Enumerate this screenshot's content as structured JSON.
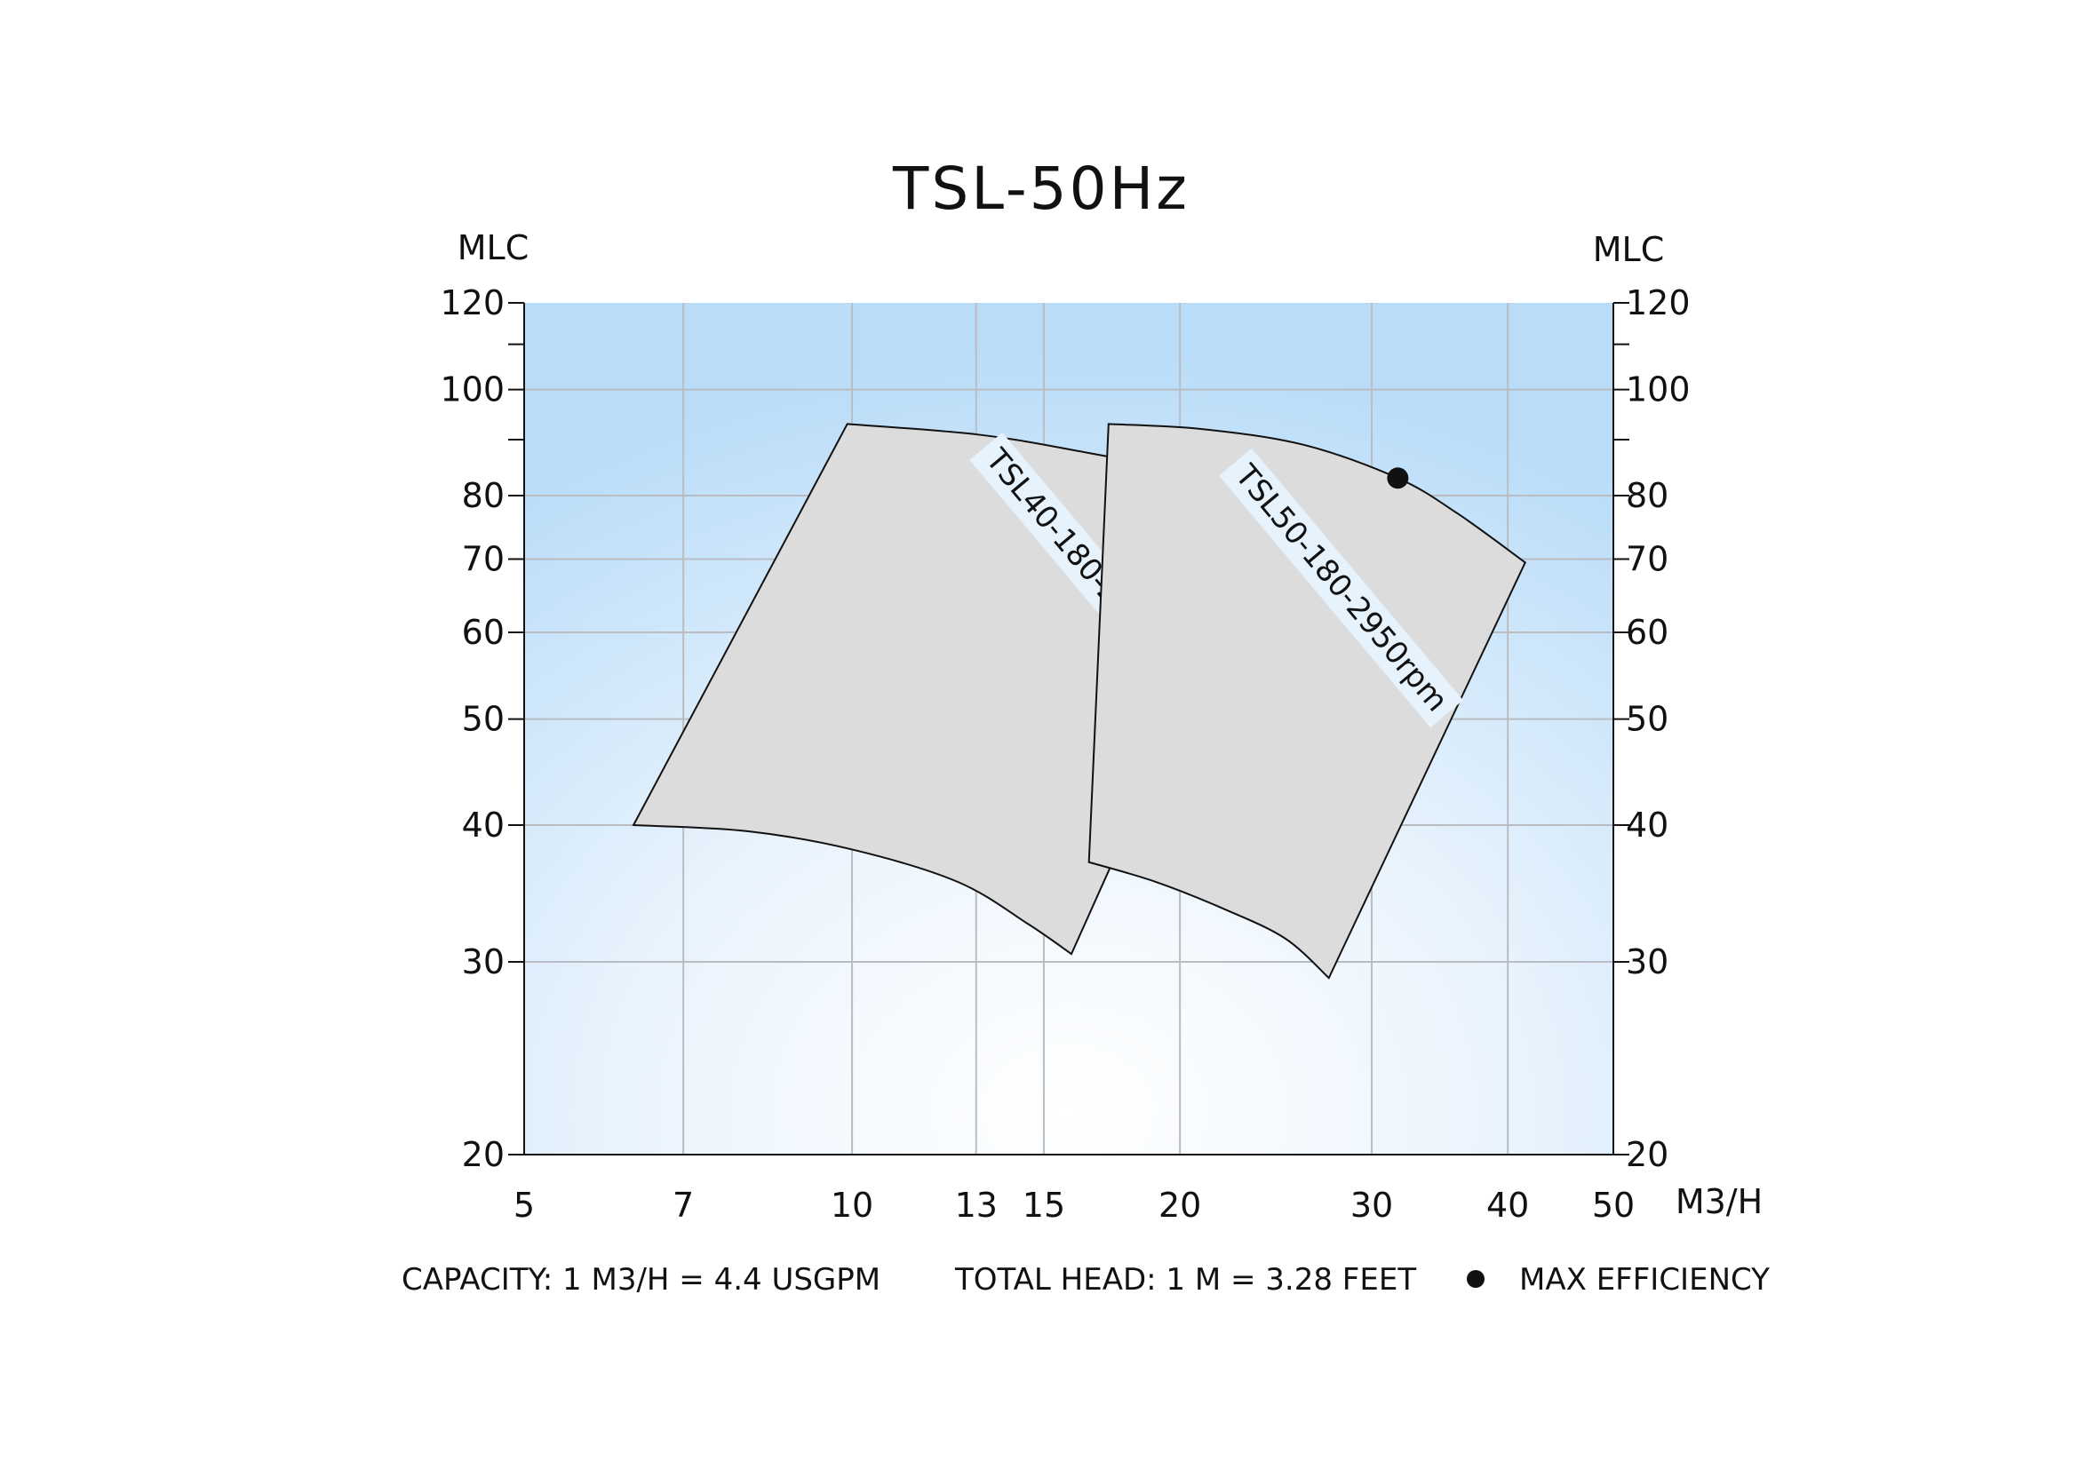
{
  "chart_data": {
    "type": "area",
    "title": "TSL-50Hz",
    "xscale": "log",
    "yscale": "log",
    "xlim": [
      5,
      50
    ],
    "ylim": [
      20,
      120
    ],
    "x_unit": "M3/H",
    "y_unit_left": "MLC",
    "y_unit_right": "MLC",
    "x_ticks": [
      5,
      7,
      10,
      13,
      15,
      20,
      30,
      40,
      50
    ],
    "y_ticks": [
      20,
      30,
      40,
      50,
      60,
      70,
      80,
      100,
      120
    ],
    "y_minor_ticks": [
      90,
      110
    ],
    "grid": true,
    "regions": [
      {
        "name": "TSL40-180-2950rpm",
        "top_curve": [
          [
            9.9,
            93
          ],
          [
            13,
            91
          ],
          [
            16,
            88
          ],
          [
            18.7,
            85
          ],
          [
            21,
            80
          ],
          [
            23.7,
            74
          ]
        ],
        "bottom_curve": [
          [
            6.3,
            40
          ],
          [
            8,
            39.5
          ],
          [
            10,
            38
          ],
          [
            12.5,
            35.5
          ],
          [
            14.5,
            32.5
          ],
          [
            15.9,
            30.5
          ]
        ],
        "max_efficiency": [
          18.7,
          85
        ]
      },
      {
        "name": "TSL50-180-2950rpm",
        "top_curve": [
          [
            17.2,
            93
          ],
          [
            21,
            92
          ],
          [
            26,
            89
          ],
          [
            31.7,
            83
          ],
          [
            36,
            77
          ],
          [
            41.5,
            69.5
          ]
        ],
        "bottom_curve": [
          [
            16.5,
            37
          ],
          [
            19,
            35.5
          ],
          [
            22,
            33.5
          ],
          [
            25,
            31.5
          ],
          [
            27.4,
            29
          ]
        ],
        "max_efficiency": [
          31.7,
          83
        ]
      }
    ]
  },
  "footer": {
    "capacity": "CAPACITY: 1 M3/H = 4.4 USGPM",
    "head": "TOTAL HEAD: 1 M = 3.28 FEET",
    "legend": "MAX EFFICIENCY"
  },
  "colors": {
    "bg_top": "#b9dcf8",
    "bg_bottom": "#ffffff",
    "region_fill": "#dcdcdc",
    "grid": "#b9bdc2",
    "marker": "#111111",
    "label_bg": "#e6f3fd"
  }
}
